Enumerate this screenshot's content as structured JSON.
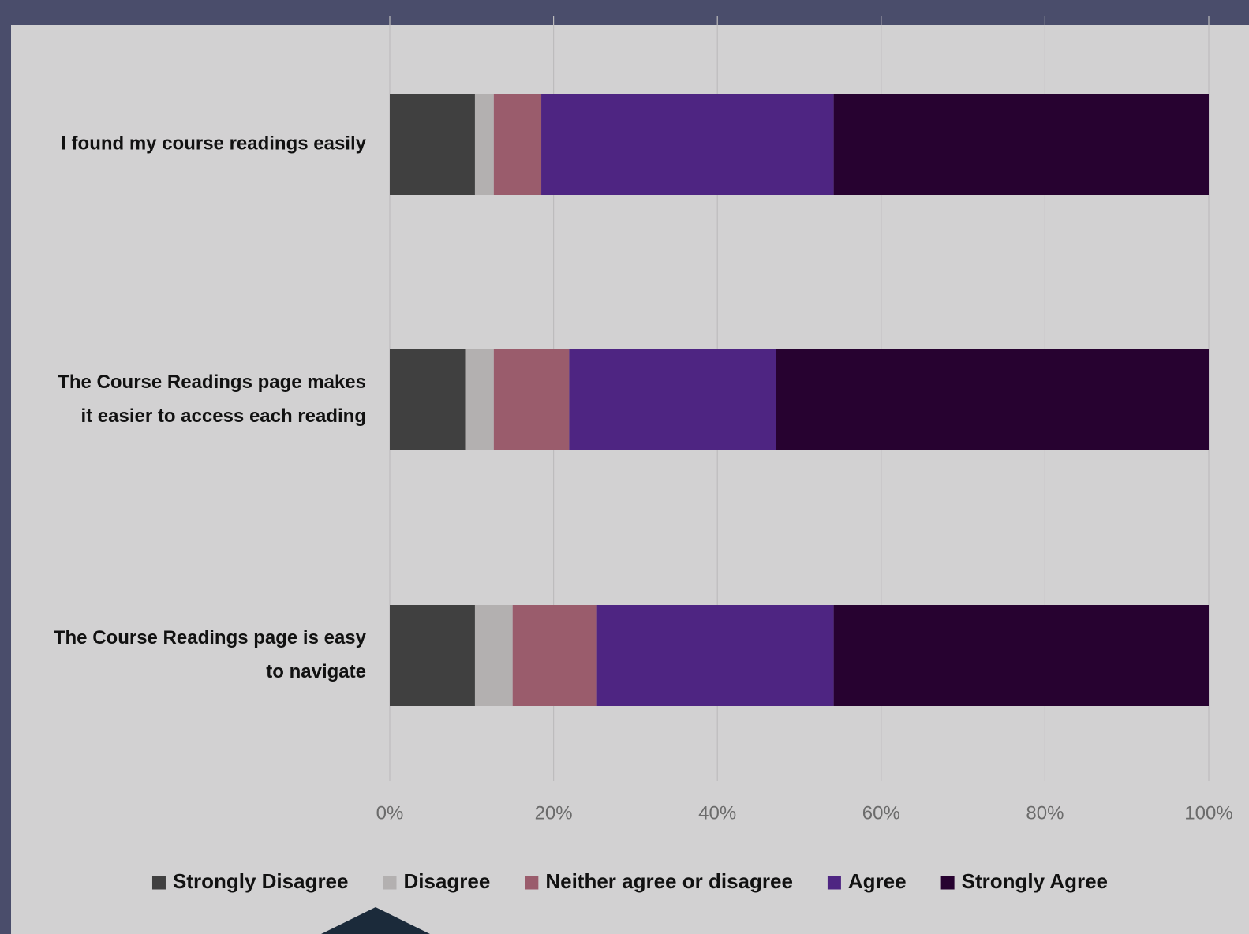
{
  "chart_data": {
    "type": "bar",
    "orientation": "horizontal",
    "stacked": "percent",
    "categories": [
      "I found my course readings easily",
      "The Course Readings page makes it easier to access each reading",
      "The Course Readings page is easy to navigate"
    ],
    "category_lines": [
      [
        "I found my course readings easily"
      ],
      [
        "The Course Readings page makes",
        "it easier to access each reading"
      ],
      [
        "The Course Readings page is easy",
        "to navigate"
      ]
    ],
    "series": [
      {
        "name": "Strongly Disagree",
        "color": "#404040",
        "values": [
          10.4,
          9.2,
          10.4
        ]
      },
      {
        "name": "Disagree",
        "color": "#b3b0b0",
        "values": [
          2.3,
          3.5,
          4.6
        ]
      },
      {
        "name": "Neither agree or disagree",
        "color": "#9a5c6c",
        "values": [
          5.8,
          9.2,
          10.3
        ]
      },
      {
        "name": "Agree",
        "color": "#4e2582",
        "values": [
          35.7,
          25.3,
          28.9
        ]
      },
      {
        "name": "Strongly Agree",
        "color": "#270230",
        "values": [
          45.8,
          52.8,
          45.8
        ]
      }
    ],
    "xlim": [
      0,
      100
    ],
    "ticks": [
      "0%",
      "20%",
      "40%",
      "60%",
      "80%",
      "100%"
    ],
    "grid": true,
    "legend_position": "bottom",
    "title": "",
    "xlabel": "",
    "ylabel": ""
  }
}
